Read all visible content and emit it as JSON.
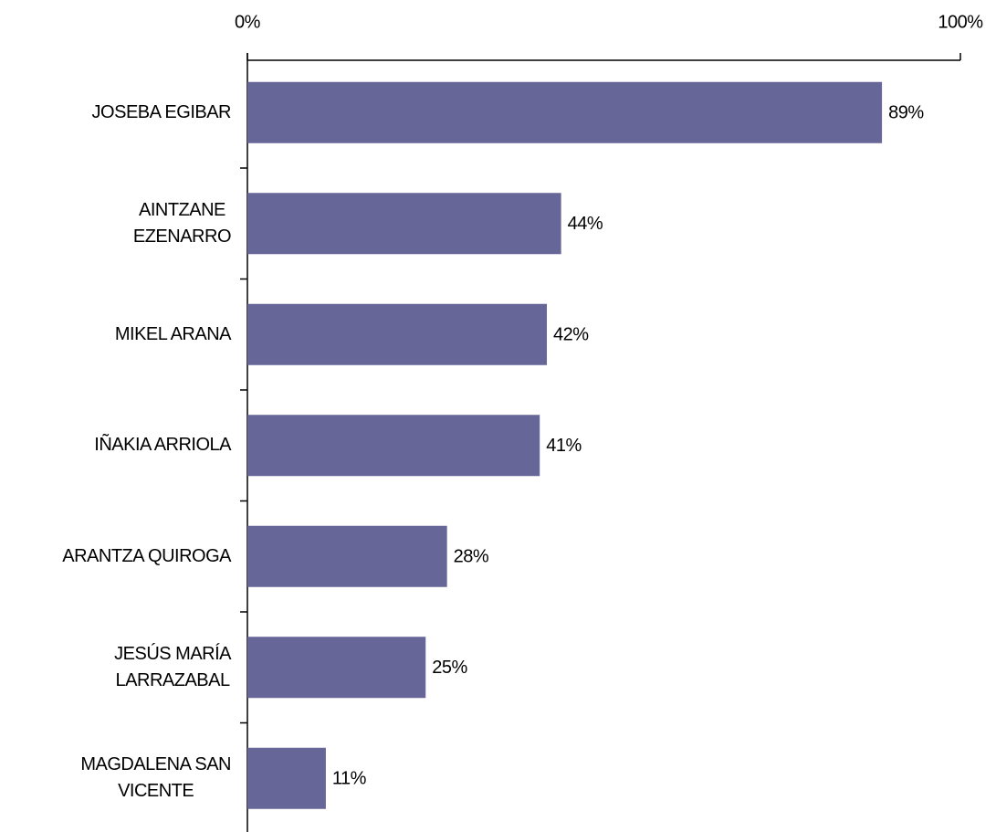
{
  "chart_data": {
    "type": "bar",
    "orientation": "horizontal",
    "categories": [
      "JOSEBA EGIBAR",
      "AINTZANE\nEZENARRO",
      "MIKEL ARANA",
      "IÑAKIA ARRIOLA",
      "ARANTZA QUIROGA",
      "JESÚS MARÍA\nLARRAZABAL",
      "MAGDALENA SAN\nVICENTE"
    ],
    "values": [
      89,
      44,
      42,
      41,
      28,
      25,
      11
    ],
    "value_labels": [
      "89%",
      "44%",
      "42%",
      "41%",
      "28%",
      "25%",
      "11%"
    ],
    "color": "#666699",
    "xlim": [
      0,
      100
    ],
    "xticks": [
      {
        "value": 0,
        "label": "0%"
      },
      {
        "value": 100,
        "label": "100%"
      }
    ]
  }
}
